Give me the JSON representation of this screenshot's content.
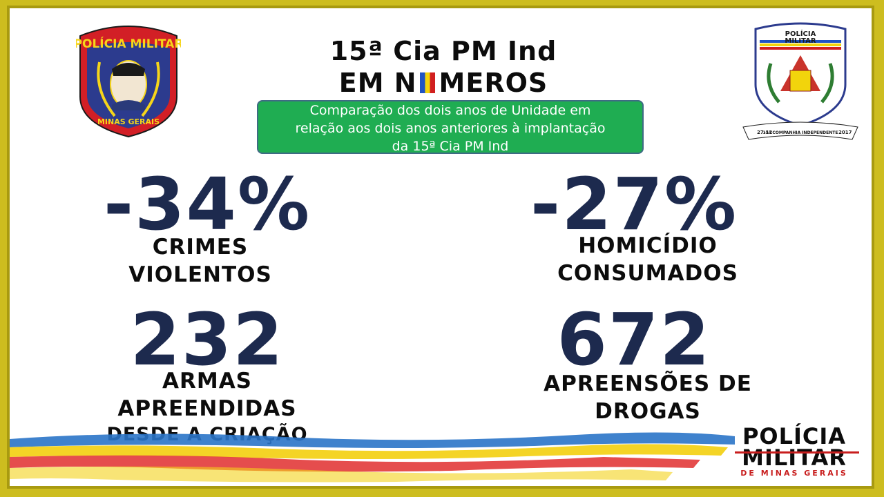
{
  "header": {
    "title_line1": "15ª Cia PM Ind",
    "title_line2_left": "EM N",
    "title_line2_right": "MEROS"
  },
  "subtitle_box": {
    "text_line1": "Comparação dos dois anos de Unidade em",
    "text_line2": "relação aos dois anos anteriores à implantação",
    "text_line3": "da 15ª Cia PM Ind"
  },
  "stats": [
    {
      "value": "-34%",
      "label_line1": "CRIMES",
      "label_line2": "VIOLENTOS"
    },
    {
      "value": "-27%",
      "label_line1": "HOMICÍDIO",
      "label_line2": "CONSUMADOS"
    },
    {
      "value": "232",
      "label_line1": "ARMAS",
      "label_line2": "APREENDIDAS",
      "label_line3": "DESDE A CRIAÇÃO"
    },
    {
      "value": "672",
      "label_line1": "APREENSÕES DE",
      "label_line2": "DROGAS"
    }
  ],
  "badges": {
    "left_top": "POLÍCIA MILITAR",
    "left_bottom": "MINAS GERAIS",
    "right_top1": "POLÍCIA",
    "right_top2": "MILITAR",
    "right_sub": "DE MINAS GERAIS",
    "right_ribbon_left": "27-12",
    "right_ribbon_mid": "15ª COMPANHIA INDEPENDENTE",
    "right_ribbon_right": "2017"
  },
  "footer_logo": {
    "line1": "POLÍCIA",
    "line2": "MILITAR",
    "line3": "DE MINAS GERAIS"
  },
  "colors": {
    "frame": "#cdbd1f",
    "number_navy": "#1d2a4e",
    "green_box": "#1fad52",
    "flag_blue": "#1f54c4",
    "flag_yellow": "#f2d40c",
    "flag_red": "#d11f1f"
  }
}
